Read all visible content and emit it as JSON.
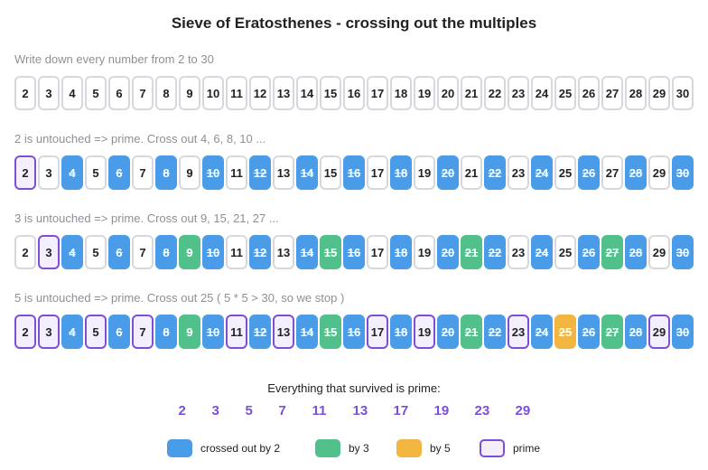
{
  "title": "Sieve of Eratosthenes  -  crossing out the multiples",
  "legend": [
    {
      "label": "crossed out by 2",
      "fill": "#4a9be8",
      "border": "#4a9be8",
      "text": "#ffffff",
      "strike": true
    },
    {
      "label": "by 3",
      "fill": "#52c08a",
      "border": "#52c08a",
      "text": "#ffffff",
      "strike": true
    },
    {
      "label": "by 5",
      "fill": "#f2b540",
      "border": "#f2b540",
      "text": "#ffffff",
      "strike": true
    },
    {
      "label": "prime",
      "fill": "#f3effd",
      "border": "#7b4fd6",
      "text": "#222222",
      "strike": false
    }
  ],
  "plain": {
    "fill": "#ffffff",
    "border": "#d5d9de",
    "text": "#222222"
  },
  "rows": [
    {
      "caption": "Write down every number from 2 to 30",
      "cells": [
        2,
        3,
        4,
        5,
        6,
        7,
        8,
        9,
        10,
        11,
        12,
        13,
        14,
        15,
        16,
        17,
        18,
        19,
        20,
        21,
        22,
        23,
        24,
        25,
        26,
        27,
        28,
        29,
        30
      ],
      "marks": [
        null,
        null,
        null,
        null,
        null,
        null,
        null,
        null,
        null,
        null,
        null,
        null,
        null,
        null,
        null,
        null,
        null,
        null,
        null,
        null,
        null,
        null,
        null,
        null,
        null,
        null,
        null,
        null,
        null
      ]
    },
    {
      "caption": "2 is untouched  =>  prime. Cross out 4, 6, 8, 10 ...",
      "cells": [
        2,
        3,
        4,
        5,
        6,
        7,
        8,
        9,
        10,
        11,
        12,
        13,
        14,
        15,
        16,
        17,
        18,
        19,
        20,
        21,
        22,
        23,
        24,
        25,
        26,
        27,
        28,
        29,
        30
      ],
      "marks": [
        3,
        null,
        0,
        null,
        0,
        null,
        0,
        null,
        0,
        null,
        0,
        null,
        0,
        null,
        0,
        null,
        0,
        null,
        0,
        null,
        0,
        null,
        0,
        null,
        0,
        null,
        0,
        null,
        0
      ]
    },
    {
      "caption": "3 is untouched  =>  prime. Cross out 9, 15, 21, 27 ...",
      "cells": [
        2,
        3,
        4,
        5,
        6,
        7,
        8,
        9,
        10,
        11,
        12,
        13,
        14,
        15,
        16,
        17,
        18,
        19,
        20,
        21,
        22,
        23,
        24,
        25,
        26,
        27,
        28,
        29,
        30
      ],
      "marks": [
        null,
        3,
        0,
        null,
        0,
        null,
        0,
        1,
        0,
        null,
        0,
        null,
        0,
        1,
        0,
        null,
        0,
        null,
        0,
        1,
        0,
        null,
        0,
        null,
        0,
        1,
        0,
        null,
        0
      ]
    },
    {
      "caption": "5 is untouched  =>  prime. Cross out 25  ( 5 * 5 > 30, so we stop )",
      "cells": [
        2,
        3,
        4,
        5,
        6,
        7,
        8,
        9,
        10,
        11,
        12,
        13,
        14,
        15,
        16,
        17,
        18,
        19,
        20,
        21,
        22,
        23,
        24,
        25,
        26,
        27,
        28,
        29,
        30
      ],
      "marks": [
        3,
        3,
        0,
        3,
        0,
        3,
        0,
        1,
        0,
        3,
        0,
        3,
        0,
        1,
        0,
        3,
        0,
        3,
        0,
        1,
        0,
        3,
        0,
        2,
        0,
        1,
        0,
        3,
        0
      ]
    }
  ],
  "summary": "Everything that survived is prime:",
  "primes": [
    2,
    3,
    5,
    7,
    11,
    13,
    17,
    19,
    23,
    29
  ]
}
